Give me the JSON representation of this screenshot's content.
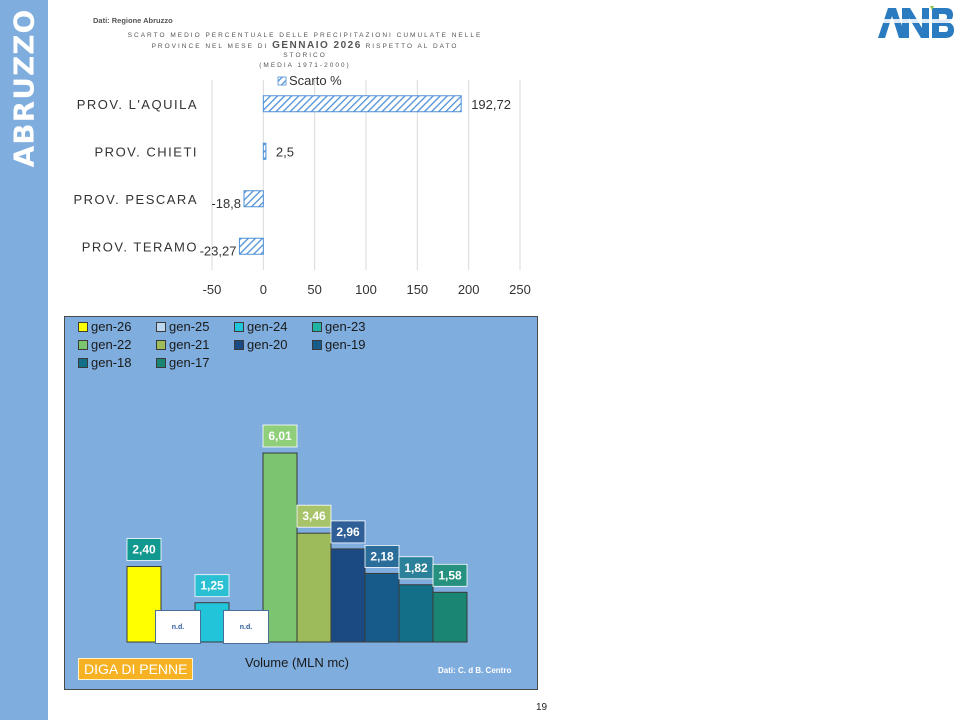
{
  "sidebar": {
    "title": "ABRUZZO"
  },
  "source_top": "Dati: Regione Abruzzo",
  "title": {
    "line1": "SCARTO MEDIO PERCENTUALE DELLE PRECIPITAZIONI CUMULATE NELLE",
    "line2_pre": "PROVINCE NEL MESE DI",
    "line2_bold": "GENNAIO 2026",
    "line2_post": "RISPETTO AL DATO",
    "line3": "STORICO",
    "line4": "(MEDIA 1971-2000)"
  },
  "chart_data": [
    {
      "type": "bar",
      "orientation": "horizontal",
      "categories": [
        "PROV. L'AQUILA",
        "PROV. CHIETI",
        "PROV. PESCARA",
        "PROV. TERAMO"
      ],
      "series": [
        {
          "name": "Scarto %",
          "values": [
            192.72,
            2.5,
            -18.8,
            -23.27
          ]
        }
      ],
      "value_labels": [
        "192,72",
        "2,5",
        "-18,8",
        "-23,27"
      ],
      "xlim": [
        -50,
        250
      ],
      "xticks": [
        "-50",
        "0",
        "50",
        "100",
        "150",
        "200",
        "250"
      ],
      "legend_position": "top",
      "pattern": "diagonal-hatch",
      "color": "#4f90d6",
      "grid": "vertical"
    },
    {
      "type": "bar",
      "categories": [
        "gen-26",
        "gen-25",
        "gen-24",
        "gen-23",
        "gen-22",
        "gen-21",
        "gen-20",
        "gen-19",
        "gen-18",
        "gen-17"
      ],
      "values": [
        2.4,
        null,
        1.25,
        null,
        6.01,
        3.46,
        2.96,
        2.18,
        1.82,
        1.58
      ],
      "value_labels": [
        "2,40",
        "",
        "1,25",
        "",
        "6,01",
        "3,46",
        "2,96",
        "2,18",
        "1,82",
        "1,58"
      ],
      "missing_label": "n.d.",
      "colors": [
        "#ffff00",
        "#bdd7ee",
        "#21c4d8",
        "#1fb5a2",
        "#7cc46f",
        "#9dbb5a",
        "#1b4a82",
        "#175b8a",
        "#136f87",
        "#1a8573"
      ],
      "label_colors": [
        "#11998f",
        "",
        "#2bbfd4",
        "",
        "#8fcf7a",
        "#a8c46a",
        "#2f5f96",
        "#2a6d9a",
        "#2b8199",
        "#27917f"
      ],
      "xlabel": "Volume (MLN mc)",
      "legend_position": "top",
      "ylim": [
        0,
        7
      ]
    }
  ],
  "panel": {
    "tag": "DIGA DI PENNE",
    "source": "Dati: C. d B. Centro"
  },
  "page_number": "19",
  "colors": {
    "sidebar": "#7fadde",
    "panel": "#7fadde",
    "tag": "#f6b223"
  }
}
